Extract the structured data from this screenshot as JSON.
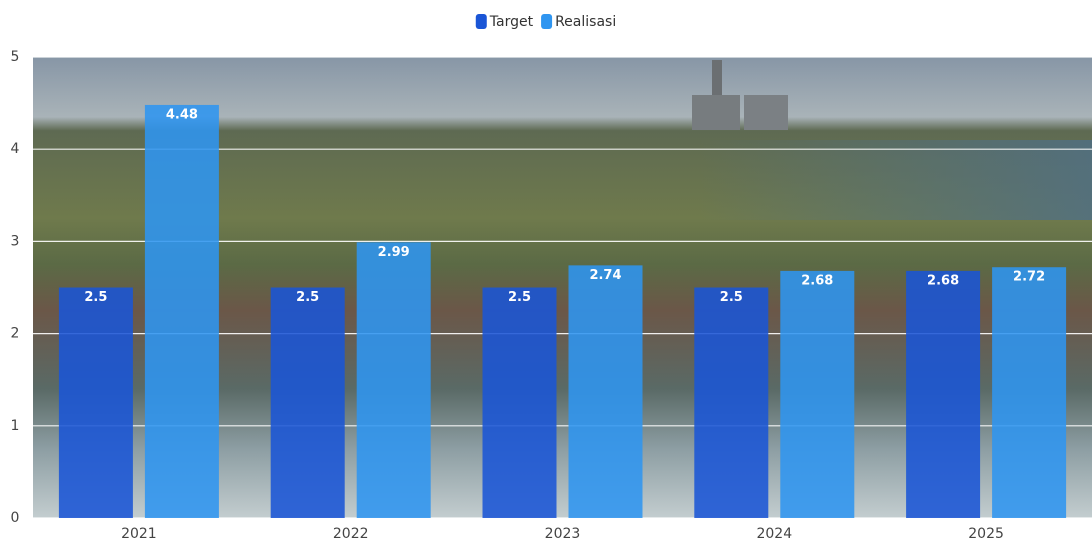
{
  "chart_data": {
    "type": "bar",
    "categories": [
      "2021",
      "2022",
      "2023",
      "2024",
      "2025"
    ],
    "series": [
      {
        "name": "Target",
        "color": "#1a55d6",
        "values": [
          2.5,
          2.5,
          2.5,
          2.5,
          2.68
        ]
      },
      {
        "name": "Realisasi",
        "color": "#2f95f0",
        "values": [
          4.48,
          2.99,
          2.74,
          2.68,
          2.72
        ]
      }
    ],
    "ylim": [
      0,
      5
    ],
    "yticks": [
      0,
      1,
      2,
      3,
      4,
      5
    ],
    "grid": true,
    "legend": "top"
  }
}
